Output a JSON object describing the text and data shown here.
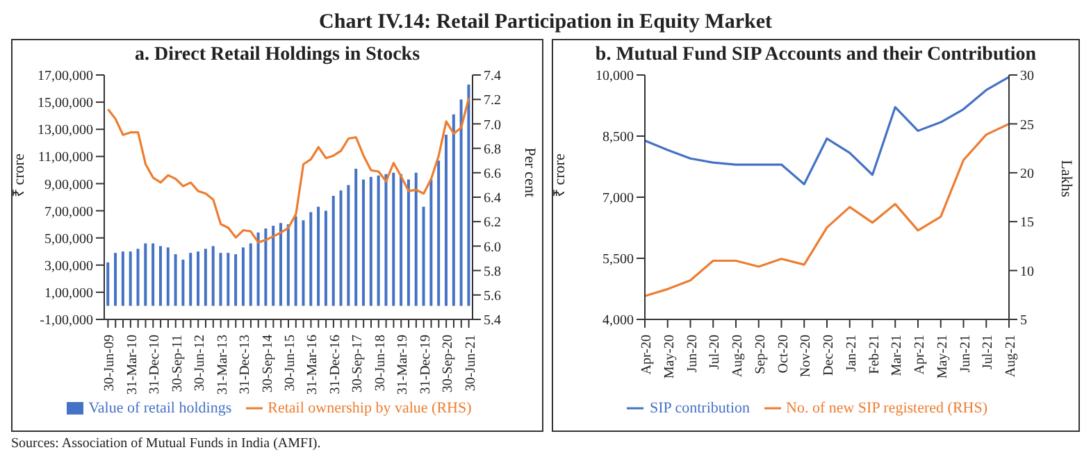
{
  "chart_data": [
    {
      "type": "bar",
      "title": "a. Direct Retail Holdings in Stocks",
      "ylabel": "₹ crore",
      "y2label": "Per cent",
      "annotations": [
        "Chart IV.14: Retail Participation in Equity Market",
        "Sources: Association of Mutual Funds in India (AMFI)."
      ],
      "categories": [
        "30-Jun-09",
        null,
        null,
        "31-Mar-10",
        null,
        null,
        "31-Dec-10",
        null,
        null,
        "30-Sep-11",
        null,
        null,
        "30-Jun-12",
        null,
        null,
        "31-Mar-13",
        null,
        null,
        "31-Dec-13",
        null,
        null,
        "30-Sep-14",
        null,
        null,
        "30-Jun-15",
        null,
        null,
        "31-Mar-16",
        null,
        null,
        "31-Dec-16",
        null,
        null,
        "30-Sep-17",
        null,
        null,
        "30-Jun-18",
        null,
        null,
        "31-Mar-19",
        null,
        null,
        "31-Dec-19",
        null,
        null,
        "30-Sep-20",
        null,
        null,
        "30-Jun-21"
      ],
      "series": [
        {
          "name": "Value of retail holdings",
          "color": "#4472c4",
          "values": [
            320000,
            390000,
            400000,
            400000,
            420000,
            460000,
            460000,
            440000,
            430000,
            380000,
            340000,
            390000,
            400000,
            420000,
            440000,
            390000,
            390000,
            380000,
            430000,
            460000,
            540000,
            570000,
            590000,
            610000,
            600000,
            660000,
            630000,
            690000,
            730000,
            700000,
            810000,
            850000,
            890000,
            1010000,
            930000,
            950000,
            960000,
            970000,
            980000,
            970000,
            930000,
            980000,
            730000,
            930000,
            1070000,
            1260000,
            1410000,
            1520000,
            1630000
          ]
        },
        {
          "name": "Retail ownership by value (RHS)",
          "type": "line",
          "axis": "y2",
          "color": "#ed7d31",
          "values": [
            7.12,
            7.04,
            6.91,
            6.93,
            6.93,
            6.67,
            6.56,
            6.52,
            6.58,
            6.55,
            6.49,
            6.52,
            6.45,
            6.43,
            6.38,
            6.18,
            6.15,
            6.07,
            6.13,
            6.12,
            6.03,
            6.05,
            6.08,
            6.11,
            6.15,
            6.26,
            6.67,
            6.71,
            6.81,
            6.72,
            6.74,
            6.78,
            6.88,
            6.89,
            6.74,
            6.62,
            6.61,
            6.53,
            6.68,
            6.57,
            6.45,
            6.46,
            6.43,
            6.55,
            6.74,
            7.02,
            6.92,
            6.97,
            7.21
          ]
        }
      ],
      "ylim": [
        -100000,
        1700000
      ],
      "yticks": [
        {
          "value": -100000,
          "label": "-1,00,000"
        },
        {
          "value": 100000,
          "label": "1,00,000"
        },
        {
          "value": 300000,
          "label": "3,00,000"
        },
        {
          "value": 500000,
          "label": "5,00,000"
        },
        {
          "value": 700000,
          "label": "7,00,000"
        },
        {
          "value": 900000,
          "label": "9,00,000"
        },
        {
          "value": 1100000,
          "label": "11,00,000"
        },
        {
          "value": 1300000,
          "label": "13,00,000"
        },
        {
          "value": 1500000,
          "label": "15,00,000"
        },
        {
          "value": 1700000,
          "label": "17,00,000"
        }
      ],
      "y2lim": [
        5.4,
        7.4
      ],
      "y2ticks": [
        {
          "value": 5.4,
          "label": "5.4"
        },
        {
          "value": 5.6,
          "label": "5.6"
        },
        {
          "value": 5.8,
          "label": "5.8"
        },
        {
          "value": 6,
          "label": "6.0"
        },
        {
          "value": 6.2,
          "label": "6.2"
        },
        {
          "value": 6.4,
          "label": "6.4"
        },
        {
          "value": 6.6,
          "label": "6.6"
        },
        {
          "value": 6.8,
          "label": "6.8"
        },
        {
          "value": 7,
          "label": "7.0"
        },
        {
          "value": 7.2,
          "label": "7.2"
        },
        {
          "value": 7.4,
          "label": "7.4"
        }
      ],
      "legend": "bottom"
    },
    {
      "type": "line",
      "title": "b. Mutual Fund SIP Accounts and their Contribution",
      "ylabel": "₹ crore",
      "y2label": "Lakhs",
      "categories": [
        "Apr-20",
        "May-20",
        "Jun-20",
        "Jul-20",
        "Aug-20",
        "Sep-20",
        "Oct-20",
        "Nov-20",
        "Dec-20",
        "Jan-21",
        "Feb-21",
        "Mar-21",
        "Apr-21",
        "May-21",
        "Jun-21",
        "Jul-21",
        "Aug-21"
      ],
      "series": [
        {
          "name": "SIP contribution",
          "color": "#4472c4",
          "values": [
            8390,
            8160,
            7950,
            7850,
            7800,
            7800,
            7800,
            7320,
            8440,
            8090,
            7550,
            9210,
            8630,
            8840,
            9160,
            9630,
            9950
          ]
        },
        {
          "name": "No. of new SIP registered (RHS)",
          "axis": "y2",
          "color": "#ed7d31",
          "values": [
            7.4,
            8.1,
            9.0,
            11.0,
            11.0,
            10.4,
            11.2,
            10.6,
            14.4,
            16.5,
            14.9,
            16.8,
            14.1,
            15.5,
            21.3,
            23.9,
            25.0
          ]
        }
      ],
      "ylim": [
        4000,
        10000
      ],
      "yticks": [
        {
          "value": 4000,
          "label": "4,000"
        },
        {
          "value": 5500,
          "label": "5,500"
        },
        {
          "value": 7000,
          "label": "7,000"
        },
        {
          "value": 8500,
          "label": "8,500"
        },
        {
          "value": 10000,
          "label": "10,000"
        }
      ],
      "y2lim": [
        5,
        30
      ],
      "y2ticks": [
        5,
        10,
        15,
        20,
        25,
        30
      ],
      "legend": "bottom"
    }
  ]
}
